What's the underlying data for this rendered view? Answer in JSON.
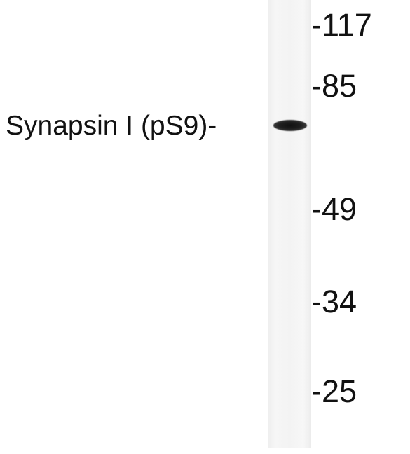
{
  "band_label": "Synapsin I (pS9)-",
  "markers": [
    "-117",
    "-85",
    "-49",
    "-34",
    "-25"
  ]
}
